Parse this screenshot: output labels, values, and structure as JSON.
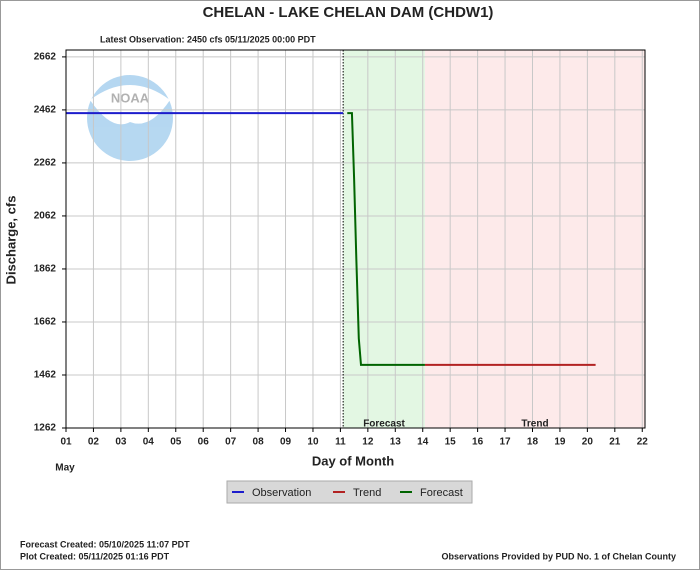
{
  "chart_data": {
    "type": "line",
    "title": "CHELAN - LAKE CHELAN DAM  (CHDW1)",
    "subtitle": "Latest Observation: 2450 cfs 05/11/2025 00:00 PDT",
    "ylabel": "Discharge, cfs",
    "xlabel": "Day of Month",
    "month_label": "May",
    "logo_text": "NOAA",
    "xlim": [
      1,
      22.1
    ],
    "ylim": [
      1262,
      2688
    ],
    "xticks": [
      {
        "value": 1,
        "label": "01"
      },
      {
        "value": 2,
        "label": "02"
      },
      {
        "value": 3,
        "label": "03"
      },
      {
        "value": 4,
        "label": "04"
      },
      {
        "value": 5,
        "label": "05"
      },
      {
        "value": 6,
        "label": "06"
      },
      {
        "value": 7,
        "label": "07"
      },
      {
        "value": 8,
        "label": "08"
      },
      {
        "value": 9,
        "label": "09"
      },
      {
        "value": 10,
        "label": "10"
      },
      {
        "value": 11,
        "label": "11"
      },
      {
        "value": 12,
        "label": "12"
      },
      {
        "value": 13,
        "label": "13"
      },
      {
        "value": 14,
        "label": "14"
      },
      {
        "value": 15,
        "label": "15"
      },
      {
        "value": 16,
        "label": "16"
      },
      {
        "value": 17,
        "label": "17"
      },
      {
        "value": 18,
        "label": "18"
      },
      {
        "value": 19,
        "label": "19"
      },
      {
        "value": 20,
        "label": "20"
      },
      {
        "value": 21,
        "label": "21"
      },
      {
        "value": 22,
        "label": "22"
      }
    ],
    "yticks": [
      1262,
      1462,
      1662,
      1862,
      2062,
      2262,
      2462,
      2662
    ],
    "grid": true,
    "now_line": 11.1,
    "shaded_regions": [
      {
        "label": "Forecast",
        "from": 11.1,
        "to": 14.08,
        "color": "#e3f7e3"
      },
      {
        "label": "Trend",
        "from": 14.08,
        "to": 22.1,
        "color": "#fdeaea"
      }
    ],
    "series": [
      {
        "name": "Observation",
        "color": "#1c1ccc",
        "x": [
          1,
          11.1
        ],
        "values": [
          2450,
          2450
        ]
      },
      {
        "name": "Trend",
        "color": "#b22222",
        "x": [
          14.08,
          20.3
        ],
        "values": [
          1500,
          1500
        ]
      },
      {
        "name": "Forecast",
        "color": "#006400",
        "x": [
          11.25,
          11.42,
          11.5,
          11.58,
          11.67,
          11.75,
          14.08
        ],
        "values": [
          2450,
          2450,
          2200,
          1900,
          1600,
          1500,
          1500
        ]
      }
    ],
    "footer": {
      "forecast_created": "Forecast Created: 05/10/2025 11:07 PDT",
      "plot_created": "Plot Created: 05/11/2025 01:16 PDT",
      "credit": "Observations Provided by PUD No. 1 of Chelan County"
    }
  }
}
